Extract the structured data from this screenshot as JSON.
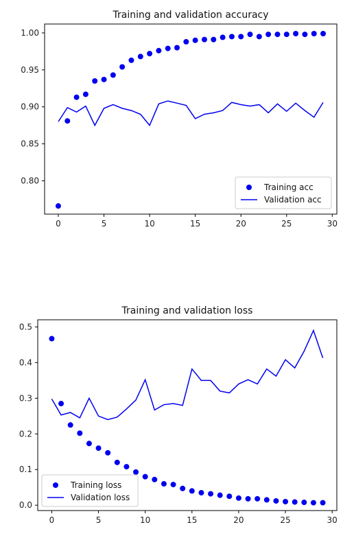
{
  "colors": {
    "series": "#0000ee",
    "axis": "#000000"
  },
  "chart_data": [
    {
      "type": "line",
      "title": "Training and validation accuracy",
      "xlabel": "",
      "ylabel": "",
      "xlim": [
        -1.5,
        30.5
      ],
      "ylim": [
        0.755,
        1.012
      ],
      "xticks": [
        0,
        5,
        10,
        15,
        20,
        25,
        30
      ],
      "yticks": [
        0.8,
        0.85,
        0.9,
        0.95,
        1.0
      ],
      "ytick_labels": [
        "0.80",
        "0.85",
        "0.90",
        "0.95",
        "1.00"
      ],
      "legend_position": "lower-right",
      "x": [
        0,
        1,
        2,
        3,
        4,
        5,
        6,
        7,
        8,
        9,
        10,
        11,
        12,
        13,
        14,
        15,
        16,
        17,
        18,
        19,
        20,
        21,
        22,
        23,
        24,
        25,
        26,
        27,
        28,
        29
      ],
      "series": [
        {
          "name": "Training acc",
          "style": "points",
          "values": [
            0.766,
            0.881,
            0.913,
            0.917,
            0.935,
            0.937,
            0.943,
            0.954,
            0.963,
            0.968,
            0.972,
            0.976,
            0.979,
            0.98,
            0.988,
            0.99,
            0.991,
            0.991,
            0.994,
            0.995,
            0.995,
            0.998,
            0.995,
            0.998,
            0.998,
            0.998,
            0.999,
            0.998,
            0.999,
            0.999
          ]
        },
        {
          "name": "Validation acc",
          "style": "line",
          "values": [
            0.88,
            0.899,
            0.893,
            0.901,
            0.875,
            0.898,
            0.903,
            0.898,
            0.895,
            0.89,
            0.875,
            0.904,
            0.908,
            0.905,
            0.902,
            0.884,
            0.89,
            0.892,
            0.895,
            0.906,
            0.903,
            0.901,
            0.903,
            0.892,
            0.904,
            0.894,
            0.905,
            0.895,
            0.886,
            0.906
          ]
        }
      ]
    },
    {
      "type": "line",
      "title": "Training and validation loss",
      "xlabel": "",
      "ylabel": "",
      "xlim": [
        -1.5,
        30.5
      ],
      "ylim": [
        -0.015,
        0.52
      ],
      "xticks": [
        0,
        5,
        10,
        15,
        20,
        25,
        30
      ],
      "yticks": [
        0.0,
        0.1,
        0.2,
        0.3,
        0.4,
        0.5
      ],
      "ytick_labels": [
        "0.0",
        "0.1",
        "0.2",
        "0.3",
        "0.4",
        "0.5"
      ],
      "legend_position": "lower-left",
      "x": [
        0,
        1,
        2,
        3,
        4,
        5,
        6,
        7,
        8,
        9,
        10,
        11,
        12,
        13,
        14,
        15,
        16,
        17,
        18,
        19,
        20,
        21,
        22,
        23,
        24,
        25,
        26,
        27,
        28,
        29
      ],
      "series": [
        {
          "name": "Training loss",
          "style": "points",
          "values": [
            0.467,
            0.285,
            0.225,
            0.202,
            0.173,
            0.16,
            0.147,
            0.12,
            0.108,
            0.093,
            0.08,
            0.072,
            0.06,
            0.058,
            0.047,
            0.04,
            0.035,
            0.032,
            0.028,
            0.025,
            0.02,
            0.018,
            0.018,
            0.015,
            0.012,
            0.01,
            0.009,
            0.008,
            0.007,
            0.007
          ]
        },
        {
          "name": "Validation loss",
          "style": "line",
          "values": [
            0.298,
            0.253,
            0.26,
            0.245,
            0.3,
            0.25,
            0.24,
            0.247,
            0.27,
            0.295,
            0.352,
            0.267,
            0.282,
            0.285,
            0.28,
            0.382,
            0.35,
            0.35,
            0.32,
            0.315,
            0.34,
            0.352,
            0.34,
            0.382,
            0.362,
            0.408,
            0.385,
            0.432,
            0.49,
            0.413
          ]
        }
      ]
    }
  ]
}
